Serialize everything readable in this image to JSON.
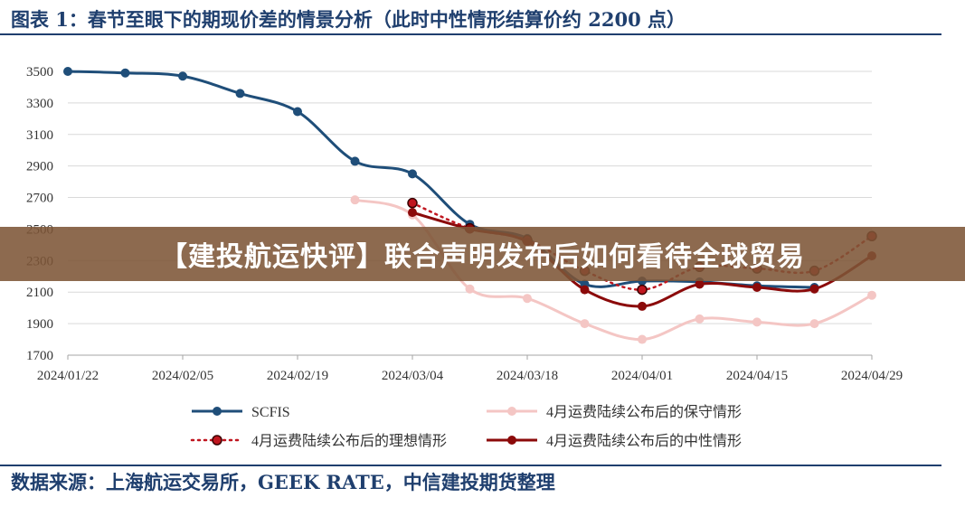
{
  "header": {
    "title": "图表 1：春节至眼下的期现价差的情景分析（此时中性情形结算价约 2200 点）"
  },
  "footer": {
    "source": "数据来源：上海航运交易所，GEEK RATE，中信建投期货整理"
  },
  "overlay": {
    "banner": "【建投航运快评】联合声明发布后如何看待全球贸易"
  },
  "chart_data": {
    "type": "line",
    "x_ticks": [
      "2024/01/22",
      "2024/02/05",
      "2024/02/19",
      "2024/03/04",
      "2024/03/18",
      "2024/04/01",
      "2024/04/15",
      "2024/04/29"
    ],
    "xlim": [
      "2024/01/22",
      "2024/04/29"
    ],
    "ylim": [
      1700,
      3500
    ],
    "y_ticks": [
      1700,
      1900,
      2100,
      2300,
      2500,
      2700,
      2900,
      3100,
      3300,
      3500
    ],
    "grid": true,
    "legend_position": "bottom",
    "series": [
      {
        "name": "SCFIS",
        "color": "#1f4e79",
        "style": "solid-smooth",
        "points": [
          [
            "2024/01/22",
            3500
          ],
          [
            "2024/01/29",
            3490
          ],
          [
            "2024/02/05",
            3470
          ],
          [
            "2024/02/12",
            3360
          ],
          [
            "2024/02/19",
            3245
          ],
          [
            "2024/02/26",
            2930
          ],
          [
            "2024/03/04",
            2850
          ],
          [
            "2024/03/11",
            2530
          ],
          [
            "2024/03/18",
            2440
          ],
          [
            "2024/03/25",
            2150
          ],
          [
            "2024/04/01",
            2170
          ],
          [
            "2024/04/08",
            2165
          ],
          [
            "2024/04/15",
            2140
          ],
          [
            "2024/04/22",
            2130
          ]
        ]
      },
      {
        "name": "4月运费陆续公布后的保守情形",
        "color": "#f4c6c4",
        "style": "solid",
        "points": [
          [
            "2024/02/26",
            2685
          ],
          [
            "2024/03/04",
            2590
          ],
          [
            "2024/03/11",
            2120
          ],
          [
            "2024/03/18",
            2060
          ],
          [
            "2024/03/25",
            1900
          ],
          [
            "2024/04/01",
            1800
          ],
          [
            "2024/04/08",
            1930
          ],
          [
            "2024/04/15",
            1910
          ],
          [
            "2024/04/22",
            1900
          ],
          [
            "2024/04/29",
            2080
          ]
        ]
      },
      {
        "name": "4月运费陆续公布后的理想情形",
        "color": "#c0161f",
        "style": "dotted",
        "points": [
          [
            "2024/03/04",
            2665
          ],
          [
            "2024/03/11",
            2505
          ],
          [
            "2024/03/18",
            2430
          ],
          [
            "2024/03/25",
            2235
          ],
          [
            "2024/04/01",
            2115
          ],
          [
            "2024/04/08",
            2260
          ],
          [
            "2024/04/15",
            2250
          ],
          [
            "2024/04/22",
            2235
          ],
          [
            "2024/04/29",
            2455
          ]
        ]
      },
      {
        "name": "4月运费陆续公布后的中性情形",
        "color": "#8b0a0a",
        "style": "solid",
        "points": [
          [
            "2024/03/04",
            2605
          ],
          [
            "2024/03/11",
            2500
          ],
          [
            "2024/03/18",
            2420
          ],
          [
            "2024/03/25",
            2115
          ],
          [
            "2024/04/01",
            2010
          ],
          [
            "2024/04/08",
            2150
          ],
          [
            "2024/04/15",
            2130
          ],
          [
            "2024/04/22",
            2120
          ],
          [
            "2024/04/29",
            2330
          ]
        ]
      }
    ]
  }
}
